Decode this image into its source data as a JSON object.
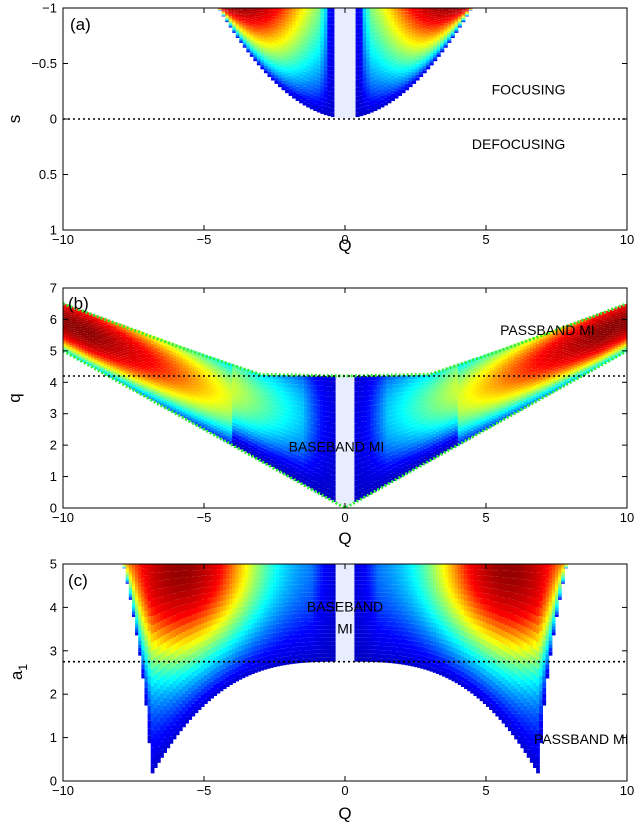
{
  "figure": {
    "colormap": [
      "#00008f",
      "#0000ff",
      "#00ffff",
      "#ffff00",
      "#ff0000",
      "#800000"
    ],
    "threshold_line_color": "#000000",
    "boundary_line_color": "#33ee33"
  },
  "chart_data": [
    {
      "type": "heatmap",
      "panel_label": "(a)",
      "xlabel": "Q",
      "ylabel": "s",
      "xlim": [
        -10,
        10
      ],
      "ylim": [
        -1,
        1
      ],
      "y_reversed": true,
      "x_ticks": [
        "−10",
        "−5",
        "0",
        "5",
        "10"
      ],
      "y_ticks": [
        "−1",
        "−0.5",
        "0",
        "0.5",
        "1"
      ],
      "x_tick_values": [
        -10,
        -5,
        0,
        5,
        10
      ],
      "y_tick_values": [
        -1,
        -0.5,
        0,
        0.5,
        1
      ],
      "dotted_lines": [
        {
          "orientation": "horizontal",
          "value": 0
        }
      ],
      "annotations": [
        {
          "text": "FOCUSING",
          "x": 5.2,
          "y": -0.22
        },
        {
          "text": "DEFOCUSING",
          "x": 4.5,
          "y": 0.27
        }
      ],
      "region": {
        "edge_at_Q0": 0,
        "edge_curvature": -0.06,
        "peak_Q": 3.8
      }
    },
    {
      "type": "heatmap",
      "panel_label": "(b)",
      "xlabel": "Q",
      "ylabel": "q",
      "xlim": [
        -10,
        10
      ],
      "ylim": [
        0,
        7
      ],
      "x_ticks": [
        "−10",
        "−5",
        "0",
        "5",
        "10"
      ],
      "y_ticks": [
        "0",
        "1",
        "2",
        "3",
        "4",
        "5",
        "6",
        "7"
      ],
      "x_tick_values": [
        -10,
        -5,
        0,
        5,
        10
      ],
      "y_tick_values": [
        0,
        1,
        2,
        3,
        4,
        5,
        6,
        7
      ],
      "dotted_lines": [
        {
          "orientation": "horizontal",
          "value": 4.2
        }
      ],
      "boundary_lines": [
        {
          "label": "upper",
          "points": [
            [
              -10,
              6.5
            ],
            [
              -5.5,
              5
            ],
            [
              -3,
              4.25
            ],
            [
              0,
              4.2
            ],
            [
              3,
              4.25
            ],
            [
              5.5,
              5
            ],
            [
              10,
              6.5
            ]
          ]
        },
        {
          "label": "lower",
          "points": [
            [
              -10,
              5
            ],
            [
              -5,
              2.5
            ],
            [
              0,
              0
            ],
            [
              5,
              2.5
            ],
            [
              10,
              5
            ]
          ]
        }
      ],
      "annotations": [
        {
          "text": "PASSBAND MI",
          "x": 5.5,
          "y": 5.5
        },
        {
          "text": "BASEBAND MI",
          "x": -2,
          "y": 1.8
        }
      ]
    },
    {
      "type": "heatmap",
      "panel_label": "(c)",
      "xlabel": "Q",
      "ylabel": "a",
      "ylabel_subscript": "1",
      "xlim": [
        -10,
        10
      ],
      "ylim": [
        0,
        5
      ],
      "x_ticks": [
        "−10",
        "−5",
        "0",
        "5",
        "10"
      ],
      "y_ticks": [
        "0",
        "1",
        "2",
        "3",
        "4",
        "5"
      ],
      "x_tick_values": [
        -10,
        -5,
        0,
        5,
        10
      ],
      "y_tick_values": [
        0,
        1,
        2,
        3,
        4,
        5
      ],
      "dotted_lines": [
        {
          "orientation": "horizontal",
          "value": 2.75
        }
      ],
      "annotations": [
        {
          "text": "BASEBAND",
          "x": 0,
          "y": 3.9
        },
        {
          "text": "MI",
          "x": 0,
          "y": 3.4
        },
        {
          "text": "PASSBAND MI",
          "x": 6.7,
          "y": 0.85
        }
      ],
      "region": {
        "outer_Q_at_top": 7.9,
        "tip_Q": 6.9,
        "tip_a1": 0.1,
        "center_bottom_a1": 2.75,
        "peak_Q": 5.8
      }
    }
  ]
}
